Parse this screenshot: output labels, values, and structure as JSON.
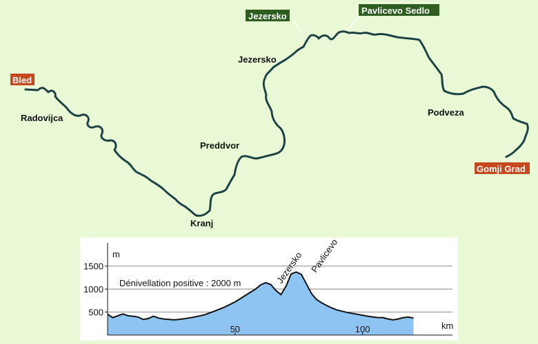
{
  "map": {
    "colors": {
      "route": "#1c4245",
      "start_end_tag": "#c5491c",
      "pass_tag": "#2d5d1f",
      "background": "#e9f9d5"
    },
    "endpoints": {
      "start": "Bled",
      "end": "Gomji Grad"
    },
    "passes": {
      "first": "Jezersko",
      "second": "Pavlicevo Sedlo"
    },
    "places": {
      "radovijca": "Radovijca",
      "kranj": "Kranj",
      "preddvor": "Preddvor",
      "jezersko": "Jezersko",
      "podveza": "Podveza"
    }
  },
  "chart_data": {
    "type": "area",
    "ylabel": "m",
    "xlabel": "km",
    "annotation": "Dénivellation positive : 2000 m",
    "peak_labels": [
      "Jezersko",
      "Pavlicevo"
    ],
    "xlim": [
      0,
      125
    ],
    "ylim": [
      0,
      1900
    ],
    "x_ticks": [
      50,
      100
    ],
    "y_ticks": [
      500,
      1000,
      1500
    ],
    "grid": "horizontal",
    "fill_color": "#8ec4f2",
    "line_color": "#111111",
    "x": [
      0,
      2,
      4,
      6,
      8,
      10,
      12,
      14,
      16,
      18,
      20,
      22,
      24,
      26,
      28,
      30,
      34,
      38,
      42,
      46,
      50,
      54,
      58,
      60,
      62,
      64,
      66,
      68,
      70,
      72,
      74,
      76,
      78,
      80,
      82,
      84,
      86,
      88,
      90,
      94,
      98,
      102,
      106,
      108,
      110,
      112,
      114,
      116,
      118,
      120
    ],
    "y": [
      450,
      380,
      420,
      460,
      420,
      410,
      390,
      340,
      360,
      410,
      370,
      350,
      340,
      330,
      340,
      355,
      390,
      440,
      520,
      610,
      720,
      860,
      1000,
      1090,
      1140,
      1100,
      970,
      880,
      1060,
      1330,
      1370,
      1320,
      1110,
      900,
      770,
      700,
      640,
      590,
      545,
      490,
      450,
      410,
      380,
      380,
      350,
      330,
      350,
      380,
      390,
      370
    ]
  }
}
